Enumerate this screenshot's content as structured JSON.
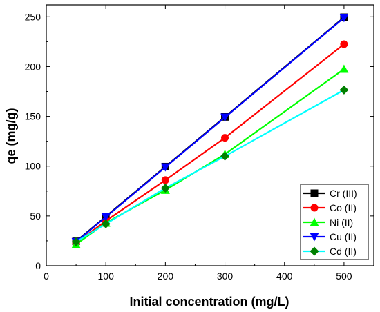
{
  "chart_data": {
    "type": "line",
    "title": "",
    "xlabel": "Initial concentration (mg/L)",
    "ylabel": "qe (mg/g)",
    "xlim": [
      0,
      550
    ],
    "ylim": [
      0,
      262
    ],
    "x_ticks": [
      0,
      100,
      200,
      300,
      400,
      500
    ],
    "y_ticks": [
      0,
      50,
      100,
      150,
      200,
      250
    ],
    "grid": false,
    "legend_position": "bottom-right",
    "x": [
      50,
      100,
      200,
      300,
      500
    ],
    "series": [
      {
        "name": "Cr (III)",
        "color": "#000000",
        "marker": "square",
        "values": [
          24.5,
          49.5,
          99.5,
          149.5,
          249.5
        ]
      },
      {
        "name": "Co (II)",
        "color": "#ff0000",
        "marker": "circle",
        "values": [
          23,
          45,
          86,
          128.5,
          222.5
        ]
      },
      {
        "name": "Ni (II)",
        "color": "#00ff00",
        "marker": "triangle-up",
        "values": [
          21.5,
          43,
          76,
          112,
          197.5
        ]
      },
      {
        "name": "Cu (II)",
        "color": "#0000ff",
        "marker": "triangle-down",
        "values": [
          24,
          49,
          99,
          149,
          249
        ]
      },
      {
        "name": "Cd (II)",
        "color": "#00ffff",
        "marker": "diamond",
        "marker_color": "#008000",
        "values": [
          24,
          42,
          78,
          110,
          176.5
        ]
      }
    ]
  }
}
